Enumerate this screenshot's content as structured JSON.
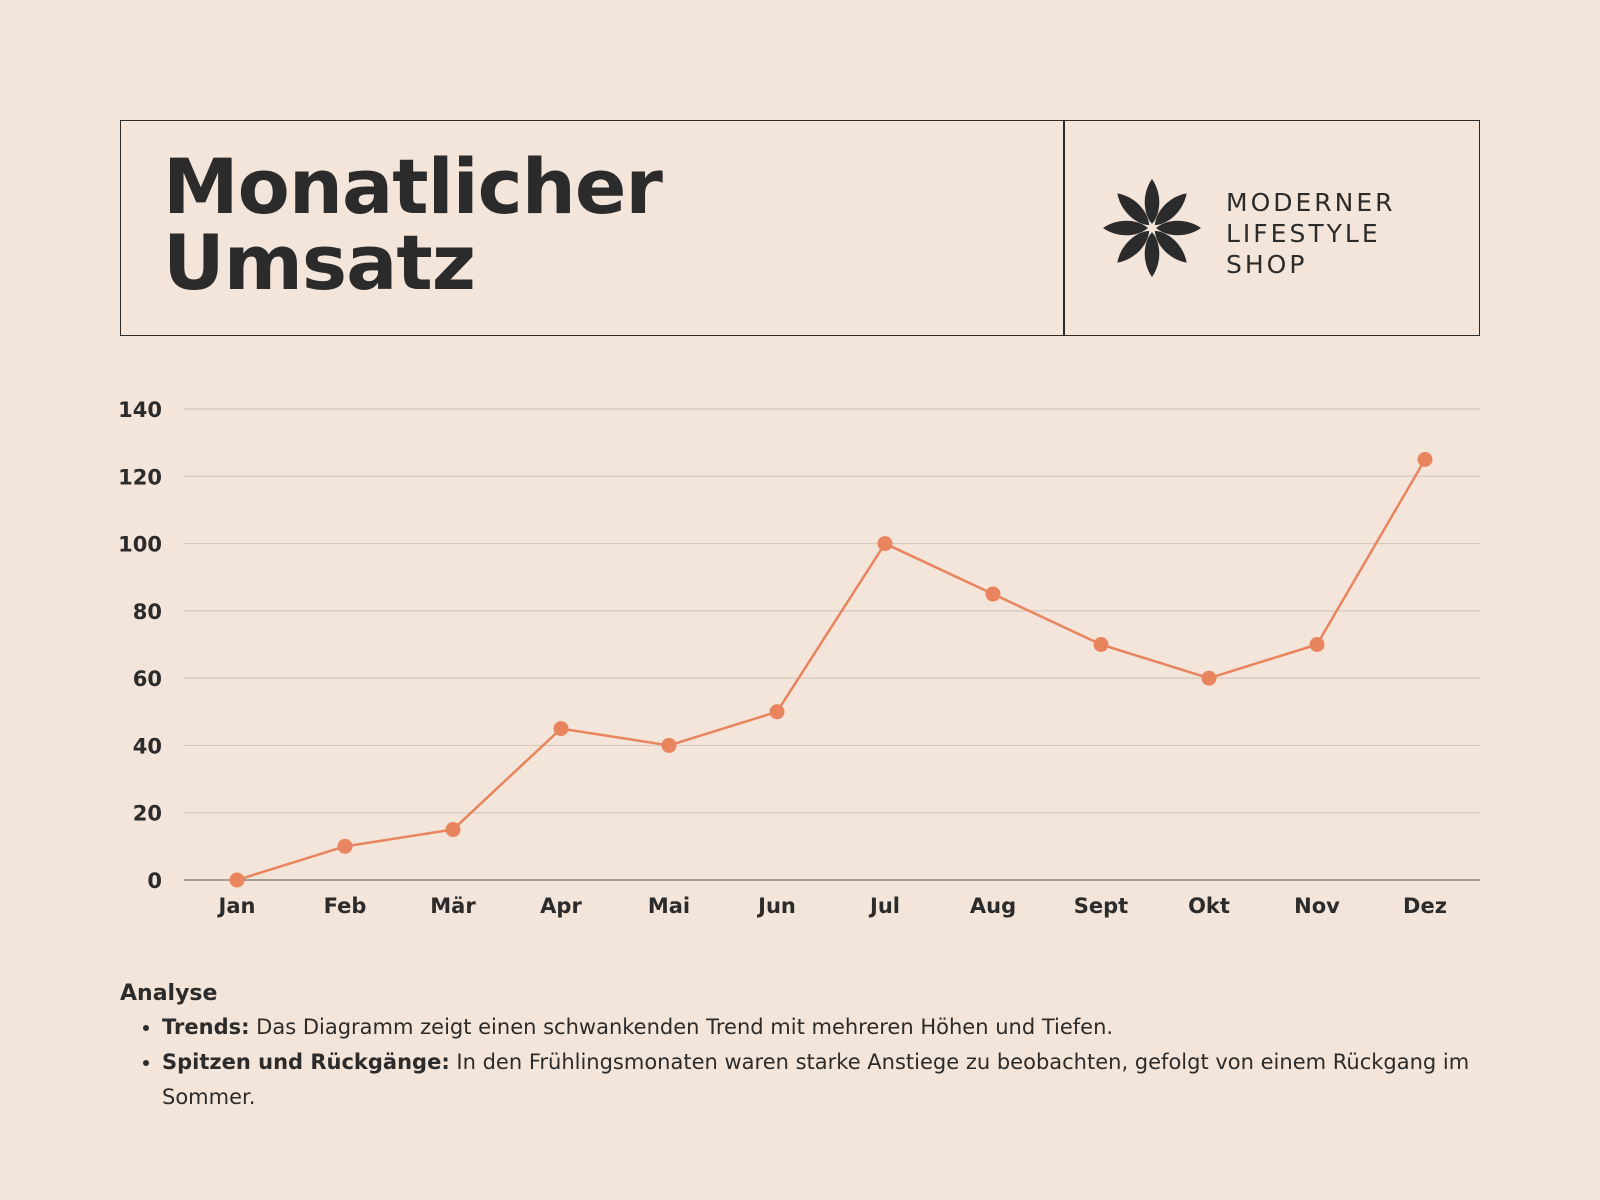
{
  "header": {
    "title_line1": "Monatlicher",
    "title_line2": "Umsatz",
    "brand_line1": "MODERNER",
    "brand_line2": "LIFESTYLE",
    "brand_line3": "SHOP",
    "logo_icon": "flower-icon"
  },
  "colors": {
    "background": "#f3e5d9",
    "text": "#2b2b2b",
    "line": "#e8845e",
    "grid": "#d6c8bb",
    "axis": "#8a8078"
  },
  "chart_data": {
    "type": "line",
    "categories": [
      "Jan",
      "Feb",
      "Mär",
      "Apr",
      "Mai",
      "Jun",
      "Jul",
      "Aug",
      "Sept",
      "Okt",
      "Nov",
      "Dez"
    ],
    "series": [
      {
        "values": [
          0,
          10,
          15,
          45,
          40,
          50,
          100,
          85,
          70,
          60,
          70,
          125
        ]
      }
    ],
    "ylim": [
      0,
      140
    ],
    "yticks": [
      0,
      20,
      40,
      60,
      80,
      100,
      120,
      140
    ],
    "grid": true,
    "title": "",
    "xlabel": "",
    "ylabel": ""
  },
  "analysis": {
    "heading": "Analyse",
    "items": [
      {
        "label": "Trends:",
        "text": " Das Diagramm zeigt einen schwankenden Trend mit mehreren Höhen und Tiefen."
      },
      {
        "label": "Spitzen und Rückgänge:",
        "text": " In den Frühlingsmonaten waren starke Anstiege zu beobachten, gefolgt von einem Rückgang im Sommer."
      }
    ]
  }
}
